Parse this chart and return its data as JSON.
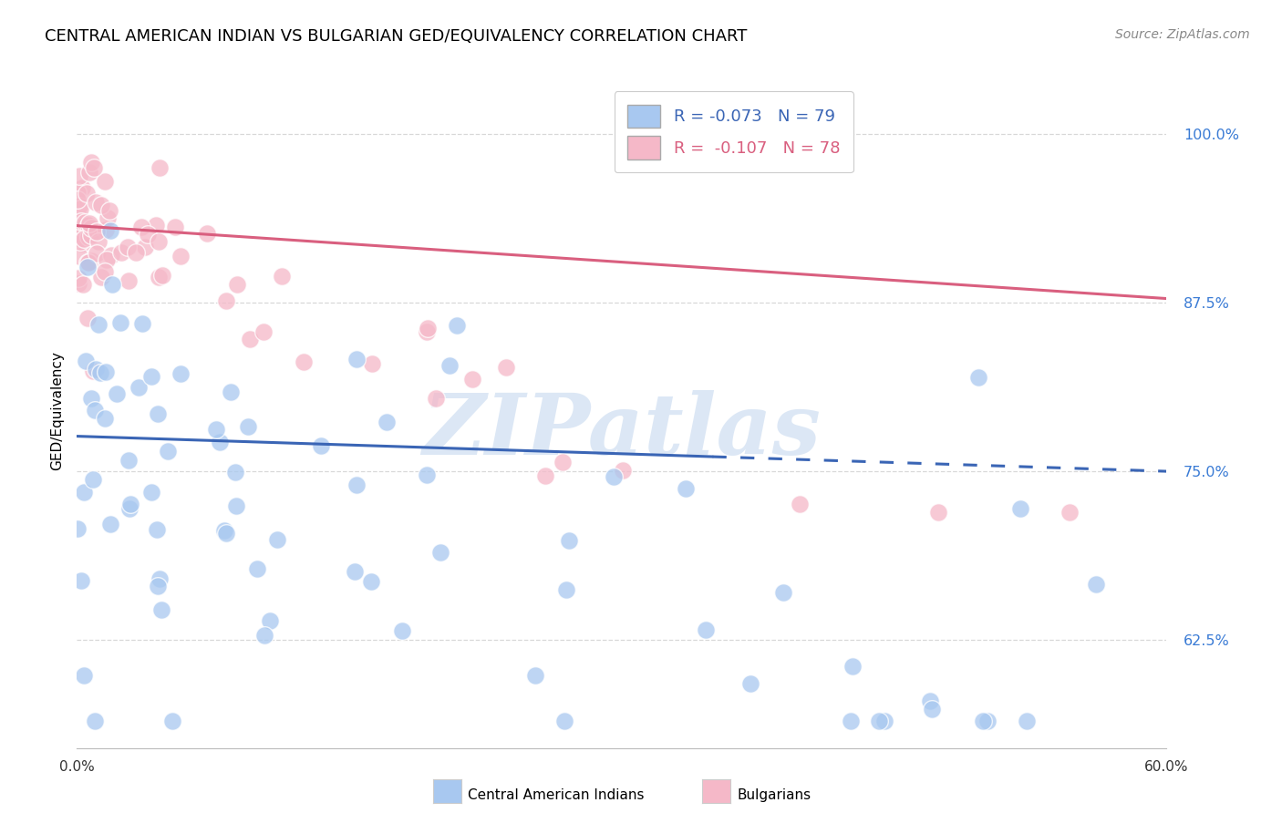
{
  "title": "CENTRAL AMERICAN INDIAN VS BULGARIAN GED/EQUIVALENCY CORRELATION CHART",
  "source": "Source: ZipAtlas.com",
  "ylabel": "GED/Equivalency",
  "yticks": [
    "100.0%",
    "87.5%",
    "75.0%",
    "62.5%"
  ],
  "ytick_vals": [
    1.0,
    0.875,
    0.75,
    0.625
  ],
  "xlim": [
    0.0,
    0.6
  ],
  "ylim": [
    0.545,
    1.045
  ],
  "legend_blue_r": "-0.073",
  "legend_blue_n": "79",
  "legend_pink_r": "-0.107",
  "legend_pink_n": "78",
  "blue_color": "#a8c8f0",
  "pink_color": "#f5b8c8",
  "blue_line_color": "#3a65b5",
  "pink_line_color": "#d95f7f",
  "watermark_text": "ZIPatlas",
  "legend_label_blue": "Central American Indians",
  "legend_label_pink": "Bulgarians",
  "blue_line_y0": 0.776,
  "blue_line_y1": 0.75,
  "pink_line_y0": 0.932,
  "pink_line_y1": 0.878,
  "grid_color": "#d8d8d8",
  "background_color": "#ffffff",
  "title_fontsize": 13,
  "source_fontsize": 10,
  "ytick_color": "#3a7bd5",
  "xtick_color": "#333333"
}
